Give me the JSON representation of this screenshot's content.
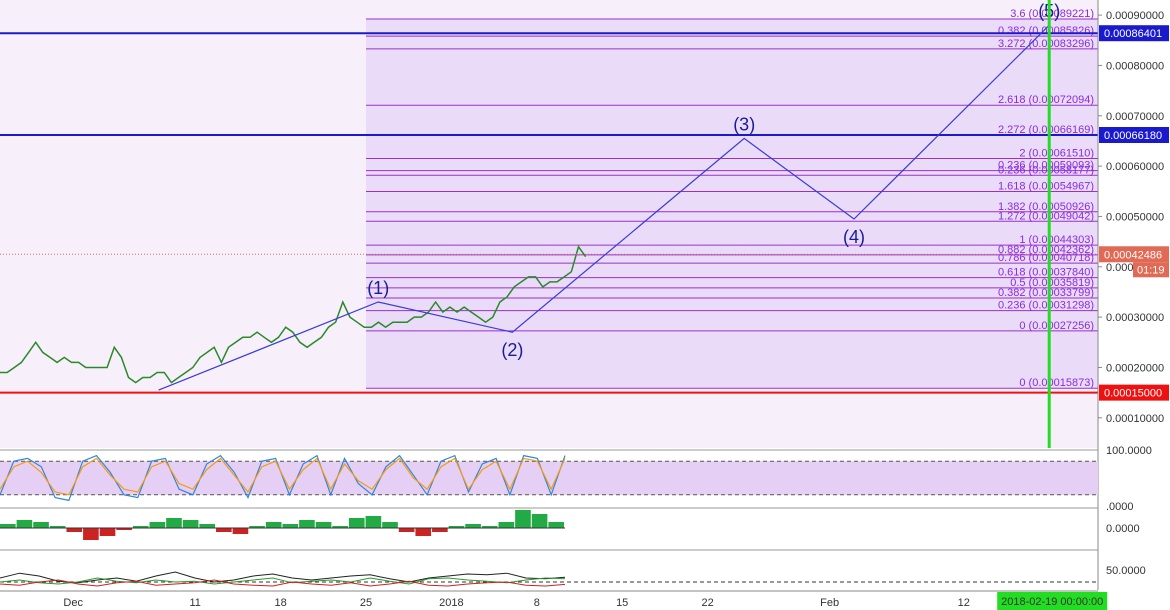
{
  "chart_data": {
    "type": "line",
    "title": "",
    "xlabel": "",
    "ylabel": "",
    "ylim": [
      4e-05,
      0.00093
    ],
    "y_ticks": [
      "0.00010000",
      "0.00020000",
      "0.00030000",
      "0.00040000",
      "0.00050000",
      "0.00060000",
      "0.00070000",
      "0.00080000",
      "0.00090000"
    ],
    "y_tick_values": [
      0.0001,
      0.0002,
      0.0003,
      0.0004,
      0.0005,
      0.0006,
      0.0007,
      0.0008,
      0.0009
    ],
    "x_ticks": [
      "Dec",
      "11",
      "18",
      "25",
      "2018",
      "8",
      "15",
      "22",
      "Feb",
      "12"
    ],
    "x_ticks_date": [
      "2017-12-01",
      "2017-12-11",
      "2017-12-18",
      "2017-12-25",
      "2018-01-01",
      "2018-01-08",
      "2018-01-15",
      "2018-01-22",
      "2018-02-01",
      "2018-02-12"
    ],
    "x_range_date": [
      "2017-11-25",
      "2018-02-23"
    ],
    "cursor_time_label": "2018-02-19 00:00:00",
    "cursor_date": "2018-02-19",
    "price_tag": {
      "value": "0.00042486",
      "countdown": "01:19",
      "color": "#e06a55"
    },
    "price": {
      "values": [
        0.00019,
        0.00019,
        0.0002,
        0.00021,
        0.00023,
        0.00025,
        0.00023,
        0.00022,
        0.00021,
        0.00022,
        0.00021,
        0.00021,
        0.0002,
        0.0002,
        0.0002,
        0.0002,
        0.00024,
        0.00022,
        0.00018,
        0.00017,
        0.00018,
        0.00018,
        0.00019,
        0.00019,
        0.00017,
        0.00018,
        0.00019,
        0.0002,
        0.00022,
        0.00023,
        0.00024,
        0.00021,
        0.00024,
        0.00025,
        0.00026,
        0.00026,
        0.00027,
        0.00026,
        0.00025,
        0.00026,
        0.00028,
        0.00027,
        0.00025,
        0.00024,
        0.00025,
        0.00026,
        0.00028,
        0.00029,
        0.00033,
        0.0003,
        0.00029,
        0.00028,
        0.00028,
        0.00029,
        0.00028,
        0.00029,
        0.00029,
        0.00029,
        0.0003,
        0.0003,
        0.00031,
        0.00033,
        0.00031,
        0.00032,
        0.00031,
        0.00032,
        0.00031,
        0.0003,
        0.00029,
        0.0003,
        0.00033,
        0.00034,
        0.00036,
        0.00037,
        0.00038,
        0.00038,
        0.00036,
        0.00037,
        0.00037,
        0.00038,
        0.00039,
        0.00044,
        0.00042
      ],
      "start_date": "2017-11-25",
      "end_date": "2018-01-12"
    },
    "horizontal_levels": [
      {
        "value": "0.00086401",
        "color": "#1a1acc"
      },
      {
        "value": "0.00066180",
        "color": "#1a1acc"
      },
      {
        "value": "0.00015000",
        "color": "#ee1111"
      }
    ],
    "fib_levels": [
      {
        "label": "3.6",
        "value": "0.00089221"
      },
      {
        "label": "3.272",
        "value": "0.00083296"
      },
      {
        "label": "0.382",
        "value": "0.00085826"
      },
      {
        "label": "2.618",
        "value": "0.00072094"
      },
      {
        "label": "2.272",
        "value": "0.00066169"
      },
      {
        "label": "2",
        "value": "0.00061510"
      },
      {
        "label": "0.236",
        "value": "0.00059093"
      },
      {
        "label": "0.236",
        "value": "0.00058177"
      },
      {
        "label": "1.618",
        "value": "0.00054967"
      },
      {
        "label": "1.382",
        "value": "0.00050926"
      },
      {
        "label": "1.272",
        "value": "0.00049042"
      },
      {
        "label": "1",
        "value": "0.00044303"
      },
      {
        "label": "0.882",
        "value": "0.00042362"
      },
      {
        "label": "0.786",
        "value": "0.00040718"
      },
      {
        "label": "0.618",
        "value": "0.00037840"
      },
      {
        "label": "0.5",
        "value": "0.00035819"
      },
      {
        "label": "0.382",
        "value": "0.00033799"
      },
      {
        "label": "0.236",
        "value": "0.00031298"
      },
      {
        "label": "0",
        "value": "0.00027256"
      },
      {
        "label": "0",
        "value": "0.00015873"
      }
    ],
    "waves": [
      {
        "label": "(1)",
        "date": "2017-12-26",
        "value": 0.00033
      },
      {
        "label": "(2)",
        "date": "2018-01-06",
        "value": 0.00027
      },
      {
        "label": "(3)",
        "date": "2018-01-25",
        "value": 0.000655
      },
      {
        "label": "(4)",
        "date": "2018-02-03",
        "value": 0.000495
      },
      {
        "label": "(5)",
        "date": "2018-02-19",
        "value": 0.00088
      }
    ],
    "wave_origin": {
      "date": "2017-12-08",
      "value": 0.000155
    },
    "stoch_rsi": {
      "y_ticks": [
        "100.0000",
        ".0000"
      ],
      "ylim": [
        0,
        100
      ],
      "upper": 80,
      "lower": 20,
      "k": [
        20,
        80,
        85,
        70,
        15,
        10,
        80,
        90,
        60,
        20,
        15,
        80,
        85,
        30,
        20,
        75,
        90,
        60,
        15,
        80,
        85,
        20,
        75,
        90,
        20,
        85,
        40,
        20,
        70,
        90,
        55,
        20,
        80,
        90,
        25,
        75,
        85,
        20,
        90,
        85,
        20,
        90
      ],
      "d": [
        30,
        70,
        80,
        60,
        25,
        20,
        70,
        85,
        55,
        30,
        25,
        70,
        80,
        40,
        30,
        65,
        85,
        55,
        25,
        70,
        80,
        30,
        65,
        85,
        30,
        75,
        45,
        30,
        65,
        85,
        50,
        30,
        70,
        85,
        30,
        65,
        80,
        30,
        85,
        80,
        30,
        85
      ]
    },
    "macd": {
      "y_ticks": [
        "0.0000"
      ],
      "hist": [
        0.2,
        0.4,
        0.3,
        0.1,
        -0.2,
        -0.6,
        -0.4,
        -0.1,
        0.1,
        0.3,
        0.5,
        0.4,
        0.2,
        -0.2,
        -0.3,
        0.1,
        0.3,
        0.2,
        0.4,
        0.3,
        0.1,
        0.5,
        0.6,
        0.3,
        -0.2,
        -0.4,
        -0.2,
        0.1,
        0.2,
        0.1,
        0.3,
        0.9,
        0.7,
        0.3
      ]
    },
    "dmi": {
      "y_ticks": [
        "50.0000"
      ],
      "ylim": [
        0,
        100
      ],
      "level": 20,
      "adx": [
        30,
        42,
        35,
        22,
        18,
        25,
        30,
        22,
        35,
        45,
        30,
        20,
        25,
        35,
        40,
        30,
        25,
        30,
        35,
        38,
        28,
        20,
        30,
        35,
        40,
        38,
        42,
        30,
        28,
        32
      ],
      "pdi": [
        20,
        25,
        18,
        15,
        20,
        30,
        22,
        18,
        25,
        20,
        22,
        15,
        20,
        25,
        30,
        18,
        22,
        25,
        20,
        30,
        22,
        15,
        28,
        30,
        25,
        22,
        18,
        25,
        30,
        28
      ],
      "mdi": [
        15,
        12,
        20,
        25,
        15,
        10,
        18,
        22,
        12,
        15,
        18,
        25,
        15,
        12,
        10,
        20,
        15,
        12,
        18,
        10,
        15,
        22,
        12,
        10,
        15,
        18,
        20,
        12,
        10,
        14
      ]
    }
  }
}
